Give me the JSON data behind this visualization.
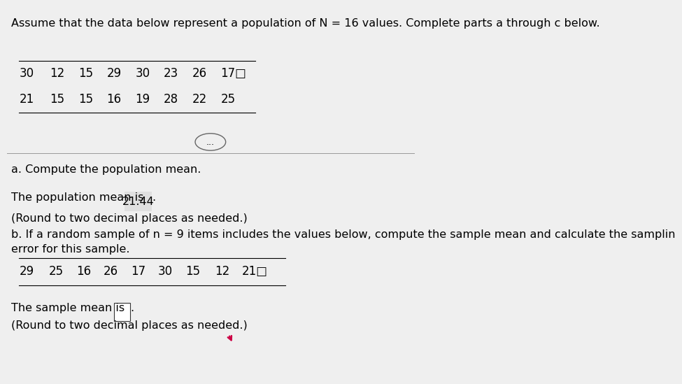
{
  "title_text": "Assume that the data below represent a population of N = 16 values. Complete parts a through c below.",
  "population_row1": [
    "30",
    "12",
    "15",
    "29",
    "30",
    "23",
    "26",
    "17□"
  ],
  "population_row2": [
    "21",
    "15",
    "15",
    "16",
    "19",
    "28",
    "22",
    "25"
  ],
  "dots_button": "...",
  "part_a_label": "a. Compute the population mean.",
  "part_a_line1": "The population mean is ",
  "part_a_highlighted": "21.44",
  "part_a_line2": "(Round to two decimal places as needed.)",
  "part_b_label": "b. If a random sample of n = 9 items includes the values below, compute the sample mean and calculate the samplin",
  "part_b_label2": "error for this sample.",
  "sample_row": [
    "29",
    "25",
    "16",
    "26",
    "17",
    "30",
    "15",
    "12",
    "21□"
  ],
  "part_b_answer_pre": "The sample mean is ",
  "part_b_answer_post": ".",
  "part_b_line2": "(Round to two decimal places as needed.)",
  "bg_color": "#efefef",
  "title_fontsize": 11.5,
  "body_fontsize": 11.5,
  "table_fontsize": 12.0
}
